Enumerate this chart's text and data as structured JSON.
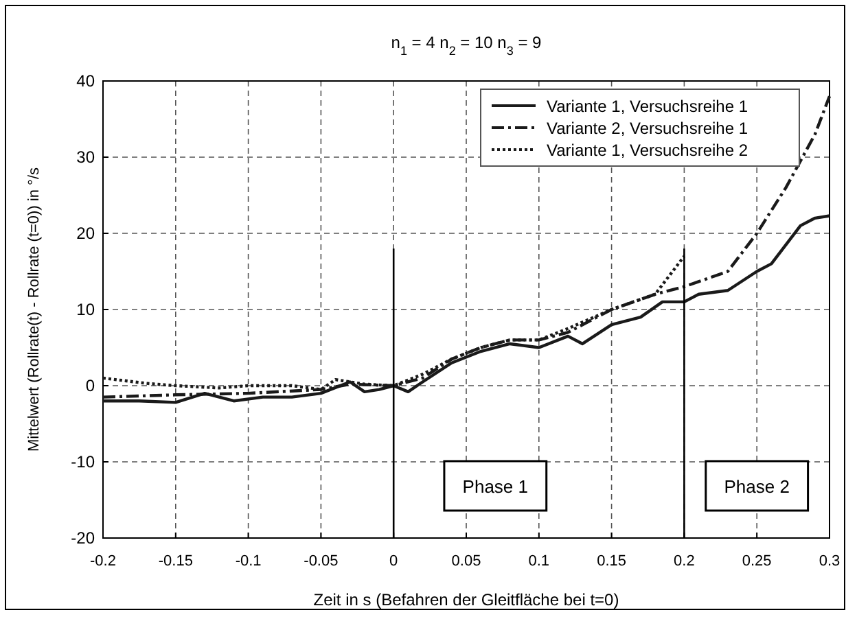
{
  "chart_data": {
    "type": "line",
    "title": "n$_{1}$ = 4 n$_{2}$ = 10 n$_{3}$ = 9",
    "xlabel": "Zeit in s (Befahren der Gleitfläche bei t=0)",
    "ylabel": "Mittelwert (Rollrate(t) - Rollrate (t=0)) in °/s",
    "xlim": [
      -0.2,
      0.3
    ],
    "xticks": [
      -0.2,
      -0.15,
      -0.1,
      -0.05,
      0,
      0.05,
      0.1,
      0.15,
      0.2,
      0.25,
      0.3
    ],
    "ylim": [
      -20,
      40
    ],
    "yticks": [
      -20,
      -10,
      0,
      10,
      20,
      30,
      40
    ],
    "grid": true,
    "legend": "top right",
    "series": [
      {
        "name": "Variante 1, Versuchsreihe 1",
        "color": "#1a1a1a",
        "line_style": "solid",
        "x": [
          -0.2,
          -0.175,
          -0.15,
          -0.13,
          -0.11,
          -0.09,
          -0.07,
          -0.05,
          -0.03,
          -0.02,
          -0.01,
          0,
          0.01,
          0.02,
          0.04,
          0.06,
          0.08,
          0.1,
          0.12,
          0.13,
          0.15,
          0.17,
          0.185,
          0.2,
          0.21,
          0.23,
          0.25,
          0.26,
          0.28,
          0.29,
          0.3
        ],
        "values": [
          -2,
          -2,
          -2.2,
          -1,
          -2,
          -1.5,
          -1.5,
          -1,
          0.5,
          -0.8,
          -0.5,
          0,
          -0.8,
          0.5,
          3,
          4.5,
          5.5,
          5,
          6.5,
          5.5,
          8,
          9,
          11,
          11,
          12,
          12.5,
          15,
          16,
          21,
          22,
          22.3
        ]
      },
      {
        "name": "Variante 2, Versuchsreihe 1",
        "color": "#1a1a1a",
        "line_style": "dashed",
        "x": [
          -0.2,
          -0.15,
          -0.1,
          -0.05,
          -0.03,
          0,
          0.02,
          0.04,
          0.06,
          0.08,
          0.1,
          0.12,
          0.15,
          0.18,
          0.2,
          0.23,
          0.25,
          0.27,
          0.29,
          0.3
        ],
        "values": [
          -1.5,
          -1.2,
          -1,
          -0.5,
          0.2,
          0,
          1,
          3.5,
          5,
          6,
          6,
          7,
          10,
          12,
          13,
          15,
          20,
          26,
          33,
          38
        ]
      },
      {
        "name": "Variante 1, Versuchsreihe 2",
        "color": "#1a1a1a",
        "line_style": "dotted",
        "x": [
          -0.2,
          -0.17,
          -0.15,
          -0.12,
          -0.1,
          -0.07,
          -0.05,
          -0.04,
          -0.02,
          0,
          0.02,
          0.04,
          0.06,
          0.08,
          0.1,
          0.12,
          0.15,
          0.18,
          0.2
        ],
        "values": [
          1,
          0.3,
          0,
          -0.3,
          0,
          0,
          -0.5,
          0.8,
          0.2,
          0,
          1.5,
          3.5,
          5,
          6,
          6,
          7.5,
          10,
          12,
          17
        ]
      },
      {
        "color": "#000000",
        "line_style": "solid",
        "x": [
          0,
          0
        ],
        "values": [
          18,
          -20
        ]
      },
      {
        "color": "#000000",
        "line_style": "solid",
        "x": [
          0.2,
          0.2
        ],
        "values": [
          18,
          -20
        ]
      }
    ],
    "annotations": [
      "Phase 1",
      "Phase 2"
    ]
  }
}
